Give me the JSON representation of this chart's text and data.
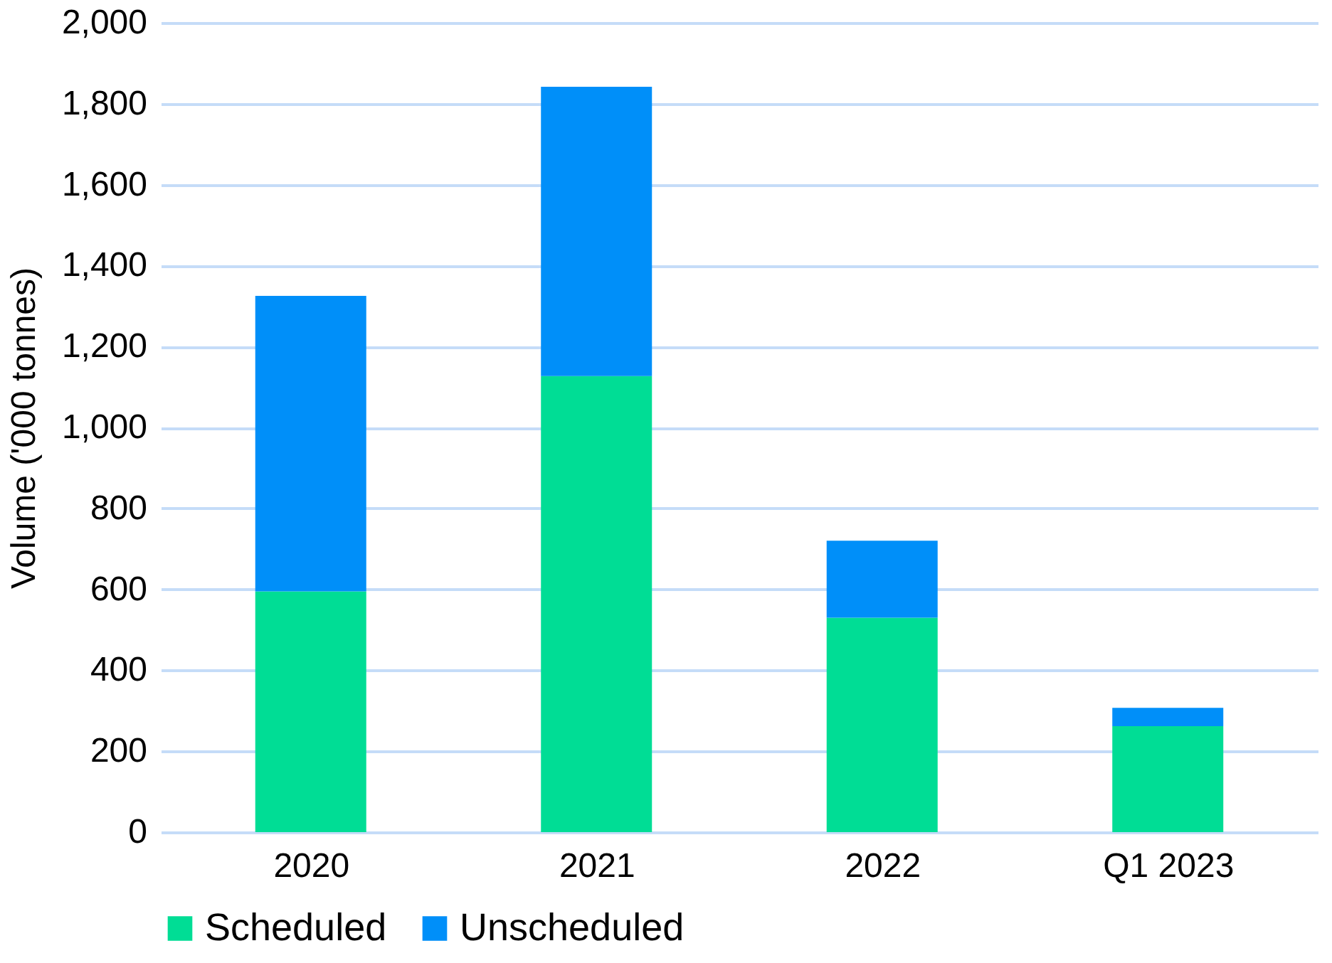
{
  "chart_data": {
    "type": "bar",
    "stacked": true,
    "ylabel": "Volume ('000 tonnes)",
    "categories": [
      "2020",
      "2021",
      "2022",
      "Q1 2023"
    ],
    "series": [
      {
        "name": "Scheduled",
        "color": "#00dd95",
        "values": [
          595,
          1127,
          530,
          262
        ]
      },
      {
        "name": "Unscheduled",
        "color": "#008ff9",
        "values": [
          730,
          715,
          190,
          45
        ]
      }
    ],
    "ylim": [
      0,
      2000
    ],
    "yticks": [
      {
        "value": 0,
        "label": "0"
      },
      {
        "value": 200,
        "label": "200"
      },
      {
        "value": 400,
        "label": "400"
      },
      {
        "value": 600,
        "label": "600"
      },
      {
        "value": 800,
        "label": "800"
      },
      {
        "value": 1000,
        "label": "1,000"
      },
      {
        "value": 1200,
        "label": "1,200"
      },
      {
        "value": 1400,
        "label": "1,400"
      },
      {
        "value": 1600,
        "label": "1,600"
      },
      {
        "value": 1800,
        "label": "1,800"
      },
      {
        "value": 2000,
        "label": "2,000"
      }
    ],
    "grid": "y",
    "legend": "bottom"
  }
}
